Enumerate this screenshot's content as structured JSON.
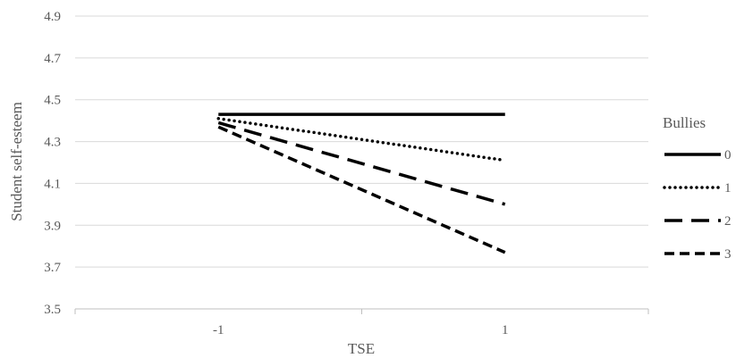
{
  "chart_data": {
    "type": "line",
    "title": "",
    "xlabel": "TSE",
    "ylabel": "Student self-esteem",
    "categories": [
      "-1",
      "1"
    ],
    "ylim": [
      3.5,
      4.9
    ],
    "yticks": [
      "3.5",
      "3.7",
      "3.9",
      "4.1",
      "4.3",
      "4.5",
      "4.7",
      "4.9"
    ],
    "grid": true,
    "legend": {
      "title": "Bullies",
      "position": "right"
    },
    "series": [
      {
        "name": "0",
        "values": [
          4.43,
          4.43
        ],
        "style": "solid"
      },
      {
        "name": "1",
        "values": [
          4.41,
          4.21
        ],
        "style": "dotted"
      },
      {
        "name": "2",
        "values": [
          4.39,
          4.0
        ],
        "style": "long-dash"
      },
      {
        "name": "3",
        "values": [
          4.37,
          3.77
        ],
        "style": "dash"
      }
    ],
    "line_color": "#000000",
    "grid_color": "#d9d9d9",
    "text_color": "#595959"
  }
}
